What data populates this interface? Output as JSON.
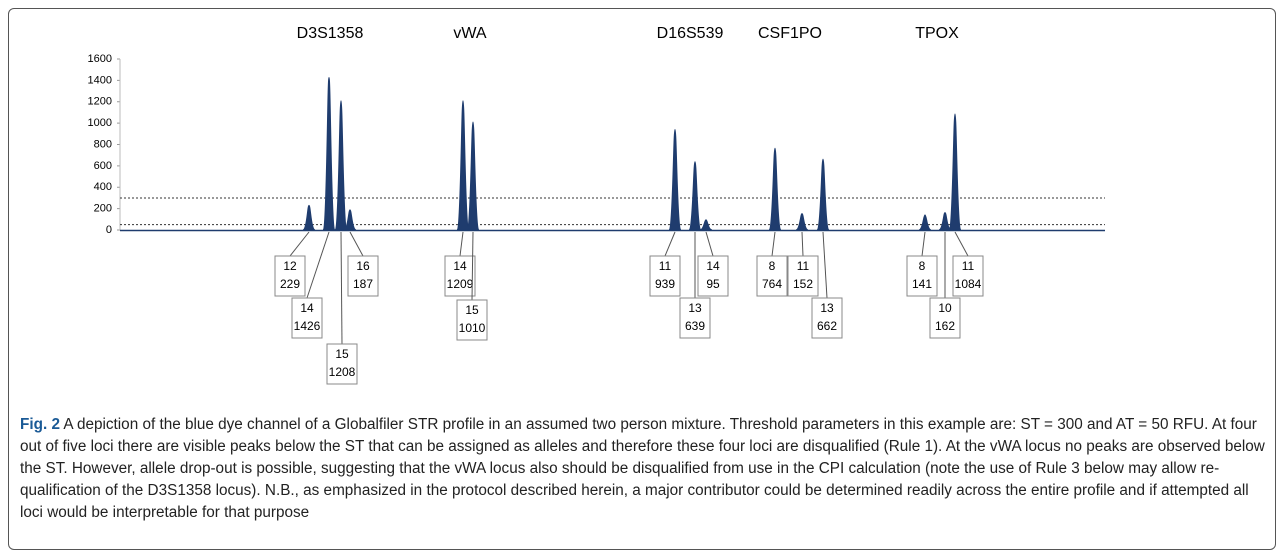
{
  "figure": {
    "label": "Fig. 2",
    "caption": "A depiction of the blue dye channel of a Globalfiler STR profile in an assumed two person mixture. Threshold parameters in this example are: ST = 300 and AT = 50 RFU. At four out of five loci there are visible peaks below the ST that can be assigned as alleles and therefore these four loci are disqualified (Rule 1). At the vWA locus no peaks are observed below the ST. However, allele drop-out is possible, suggesting that the vWA locus also should be disqualified from use in the CPI calculation (note the use of Rule 3 below may allow re-qualification of the D3S1358 locus). N.B., as emphasized in the protocol described herein, a major contributor could be determined readily across the entire profile and if attempted all loci would be interpretable for that purpose"
  },
  "chart_data": {
    "type": "peaks",
    "color": "#1f3c6e",
    "ylim": [
      0,
      1600
    ],
    "yticks": [
      0,
      200,
      400,
      600,
      800,
      1000,
      1200,
      1400,
      1600
    ],
    "thresholds": [
      300,
      50
    ],
    "loci": [
      {
        "name": "D3S1358",
        "peaks": [
          {
            "allele": 12,
            "height": 229
          },
          {
            "allele": 14,
            "height": 1426
          },
          {
            "allele": 15,
            "height": 1208
          },
          {
            "allele": 16,
            "height": 187
          }
        ]
      },
      {
        "name": "vWA",
        "peaks": [
          {
            "allele": 14,
            "height": 1209
          },
          {
            "allele": 15,
            "height": 1010
          }
        ]
      },
      {
        "name": "D16S539",
        "peaks": [
          {
            "allele": 11,
            "height": 939
          },
          {
            "allele": 13,
            "height": 639
          },
          {
            "allele": 14,
            "height": 95
          }
        ]
      },
      {
        "name": "CSF1PO",
        "peaks": [
          {
            "allele": 8,
            "height": 764
          },
          {
            "allele": 11,
            "height": 152
          },
          {
            "allele": 13,
            "height": 662
          }
        ]
      },
      {
        "name": "TPOX",
        "peaks": [
          {
            "allele": 8,
            "height": 141
          },
          {
            "allele": 10,
            "height": 162
          },
          {
            "allele": 11,
            "height": 1084
          }
        ]
      }
    ]
  }
}
